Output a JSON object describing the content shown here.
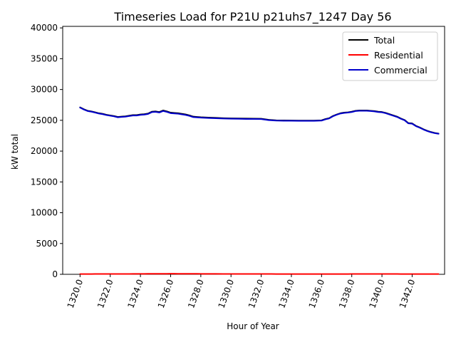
{
  "chart_data": {
    "type": "line",
    "title": "Timeseries Load for P21U p21uhs7_1247  Day 56",
    "xlabel": "Hour of Year",
    "ylabel": "kW total",
    "xlim": [
      1318.85,
      1344.15
    ],
    "ylim": [
      0,
      40250
    ],
    "xticks": [
      1320,
      1322,
      1324,
      1326,
      1328,
      1330,
      1332,
      1334,
      1336,
      1338,
      1340,
      1342
    ],
    "xtick_labels": [
      "1320.0",
      "1322.0",
      "1324.0",
      "1326.0",
      "1328.0",
      "1330.0",
      "1332.0",
      "1334.0",
      "1336.0",
      "1338.0",
      "1340.0",
      "1342.0"
    ],
    "yticks": [
      0,
      5000,
      10000,
      15000,
      20000,
      25000,
      30000,
      35000,
      40000
    ],
    "ytick_labels": [
      "0",
      "5000",
      "10000",
      "15000",
      "20000",
      "25000",
      "30000",
      "35000",
      "40000"
    ],
    "legend_position": "top-right",
    "x": [
      1320.0,
      1320.25,
      1320.5,
      1320.75,
      1321.0,
      1321.25,
      1321.5,
      1321.75,
      1322.0,
      1322.25,
      1322.5,
      1322.75,
      1323.0,
      1323.25,
      1323.5,
      1323.75,
      1324.0,
      1324.25,
      1324.5,
      1324.75,
      1325.0,
      1325.25,
      1325.5,
      1325.75,
      1326.0,
      1326.25,
      1326.5,
      1326.75,
      1327.0,
      1327.25,
      1327.5,
      1327.75,
      1328.0,
      1328.5,
      1329.0,
      1329.5,
      1330.0,
      1330.5,
      1331.0,
      1331.5,
      1332.0,
      1332.5,
      1333.0,
      1333.5,
      1334.0,
      1334.5,
      1335.0,
      1335.5,
      1336.0,
      1336.25,
      1336.5,
      1336.75,
      1337.0,
      1337.25,
      1337.5,
      1337.75,
      1338.0,
      1338.25,
      1338.5,
      1338.75,
      1339.0,
      1339.25,
      1339.5,
      1339.75,
      1340.0,
      1340.25,
      1340.5,
      1340.75,
      1341.0,
      1341.25,
      1341.5,
      1341.75,
      1342.0,
      1342.25,
      1342.5,
      1342.75,
      1343.0,
      1343.25,
      1343.5,
      1343.75
    ],
    "series": [
      {
        "name": "Total",
        "color": "#000000",
        "values": [
          27100,
          26800,
          26550,
          26450,
          26300,
          26150,
          26050,
          25900,
          25800,
          25700,
          25550,
          25600,
          25650,
          25750,
          25850,
          25850,
          25950,
          26000,
          26100,
          26400,
          26450,
          26350,
          26600,
          26450,
          26250,
          26200,
          26150,
          26050,
          25950,
          25800,
          25600,
          25550,
          25500,
          25450,
          25400,
          25350,
          25320,
          25300,
          25280,
          25270,
          25260,
          25080,
          25000,
          24980,
          24970,
          24960,
          24960,
          24960,
          25000,
          25200,
          25350,
          25700,
          25950,
          26150,
          26250,
          26300,
          26400,
          26550,
          26600,
          26600,
          26600,
          26550,
          26500,
          26400,
          26350,
          26200,
          26000,
          25800,
          25600,
          25300,
          25050,
          24550,
          24500,
          24100,
          23850,
          23550,
          23300,
          23100,
          22950,
          22850
        ]
      },
      {
        "name": "Residential",
        "color": "#ff0000",
        "values": [
          40,
          45,
          50,
          50,
          55,
          55,
          55,
          55,
          60,
          60,
          60,
          60,
          65,
          65,
          70,
          70,
          75,
          75,
          80,
          80,
          85,
          85,
          90,
          90,
          95,
          95,
          90,
          90,
          85,
          85,
          80,
          80,
          75,
          70,
          70,
          65,
          65,
          60,
          60,
          55,
          55,
          55,
          50,
          50,
          50,
          50,
          50,
          50,
          50,
          50,
          50,
          50,
          50,
          50,
          50,
          50,
          55,
          55,
          55,
          55,
          55,
          55,
          55,
          55,
          55,
          55,
          55,
          55,
          55,
          50,
          50,
          50,
          50,
          45,
          45,
          45,
          40,
          40,
          40,
          40
        ]
      },
      {
        "name": "Commercial",
        "color": "#0000cc",
        "values": [
          27060,
          26755,
          26500,
          26400,
          26245,
          26095,
          25995,
          25845,
          25740,
          25640,
          25490,
          25540,
          25585,
          25685,
          25780,
          25780,
          25875,
          25925,
          26020,
          26320,
          26365,
          26265,
          26510,
          26360,
          26155,
          26105,
          26060,
          25960,
          25865,
          25715,
          25520,
          25470,
          25425,
          25380,
          25330,
          25285,
          25255,
          25240,
          25220,
          25215,
          25205,
          25025,
          24950,
          24930,
          24920,
          24910,
          24910,
          24910,
          24950,
          25150,
          25300,
          25650,
          25900,
          26100,
          26200,
          26250,
          26345,
          26495,
          26545,
          26545,
          26545,
          26495,
          26445,
          26345,
          26295,
          26145,
          25945,
          25745,
          25545,
          25250,
          25000,
          24500,
          24450,
          24055,
          23805,
          23505,
          23260,
          23060,
          22910,
          22810
        ]
      }
    ]
  }
}
